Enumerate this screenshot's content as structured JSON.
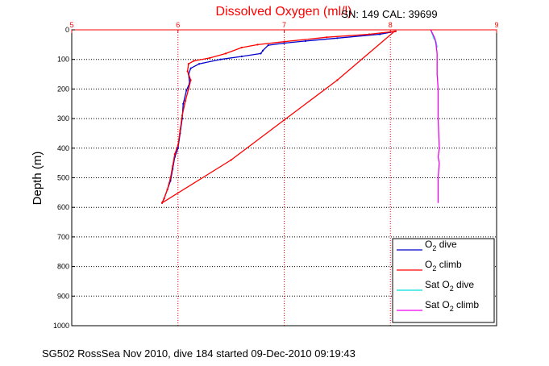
{
  "chart_data": {
    "type": "line",
    "title": "Dissolved Oxygen (ml/l)",
    "subtitle": "SN: 149  CAL: 39699",
    "ylabel": "Depth (m)",
    "xlabel": "",
    "footer": "SG502 RossSea Nov 2010, dive 184 started 09-Dec-2010 09:19:43",
    "xlim": [
      5,
      9
    ],
    "ylim": [
      0,
      1000
    ],
    "y_reversed": true,
    "x_axis_position": "top",
    "x_ticks": [
      "5",
      "6",
      "7",
      "8",
      "9"
    ],
    "y_ticks": [
      "0",
      "100",
      "200",
      "300",
      "400",
      "500",
      "600",
      "700",
      "800",
      "900",
      "1000"
    ],
    "grid": true,
    "legend_position": "bottom-right",
    "legend": [
      {
        "base": "O",
        "sub": "2",
        "suffix": " dive"
      },
      {
        "base": "O",
        "sub": "2",
        "suffix": " climb"
      },
      {
        "base": "Sat O",
        "sub": "2",
        "suffix": " dive"
      },
      {
        "base": "Sat O",
        "sub": "2",
        "suffix": " climb"
      }
    ],
    "series": [
      {
        "color": "#0000cc",
        "x": [
          8.05,
          7.9,
          7.5,
          7.2,
          7.0,
          6.85,
          6.8,
          6.78,
          6.6,
          6.4,
          6.2,
          6.12,
          6.1,
          6.11,
          6.08,
          6.05,
          6.04,
          6.02,
          6.0,
          5.97,
          5.95,
          5.93,
          5.9,
          5.87,
          5.85
        ],
        "y": [
          5,
          15,
          28,
          38,
          45,
          52,
          70,
          80,
          90,
          100,
          115,
          130,
          150,
          180,
          205,
          250,
          300,
          350,
          400,
          430,
          470,
          510,
          540,
          570,
          585
        ]
      },
      {
        "color": "#ff0000",
        "x": [
          8.05,
          7.8,
          7.4,
          7.0,
          6.75,
          6.6,
          6.45,
          6.3,
          6.15,
          6.1,
          6.09,
          6.12,
          6.1,
          6.07,
          6.04,
          6.02,
          6.0,
          5.97,
          5.95,
          5.93,
          5.9,
          5.87,
          5.85,
          6.5,
          7.0,
          7.5,
          8.04
        ],
        "y": [
          5,
          15,
          25,
          40,
          50,
          60,
          80,
          95,
          105,
          115,
          140,
          170,
          200,
          240,
          290,
          340,
          390,
          420,
          460,
          500,
          540,
          570,
          585,
          440,
          305,
          170,
          5
        ]
      },
      {
        "color": "#00dddd",
        "x": [
          8.38,
          8.39,
          8.4,
          8.41,
          8.43,
          8.44
        ],
        "y": [
          0,
          10,
          20,
          30,
          40,
          60
        ]
      },
      {
        "color": "#ee00ee",
        "x": [
          8.38,
          8.4,
          8.42,
          8.43,
          8.44,
          8.44,
          8.44,
          8.45,
          8.45,
          8.46,
          8.45,
          8.46,
          8.45,
          8.45
        ],
        "y": [
          0,
          15,
          30,
          50,
          80,
          100,
          150,
          200,
          300,
          400,
          430,
          450,
          500,
          585
        ]
      }
    ]
  }
}
